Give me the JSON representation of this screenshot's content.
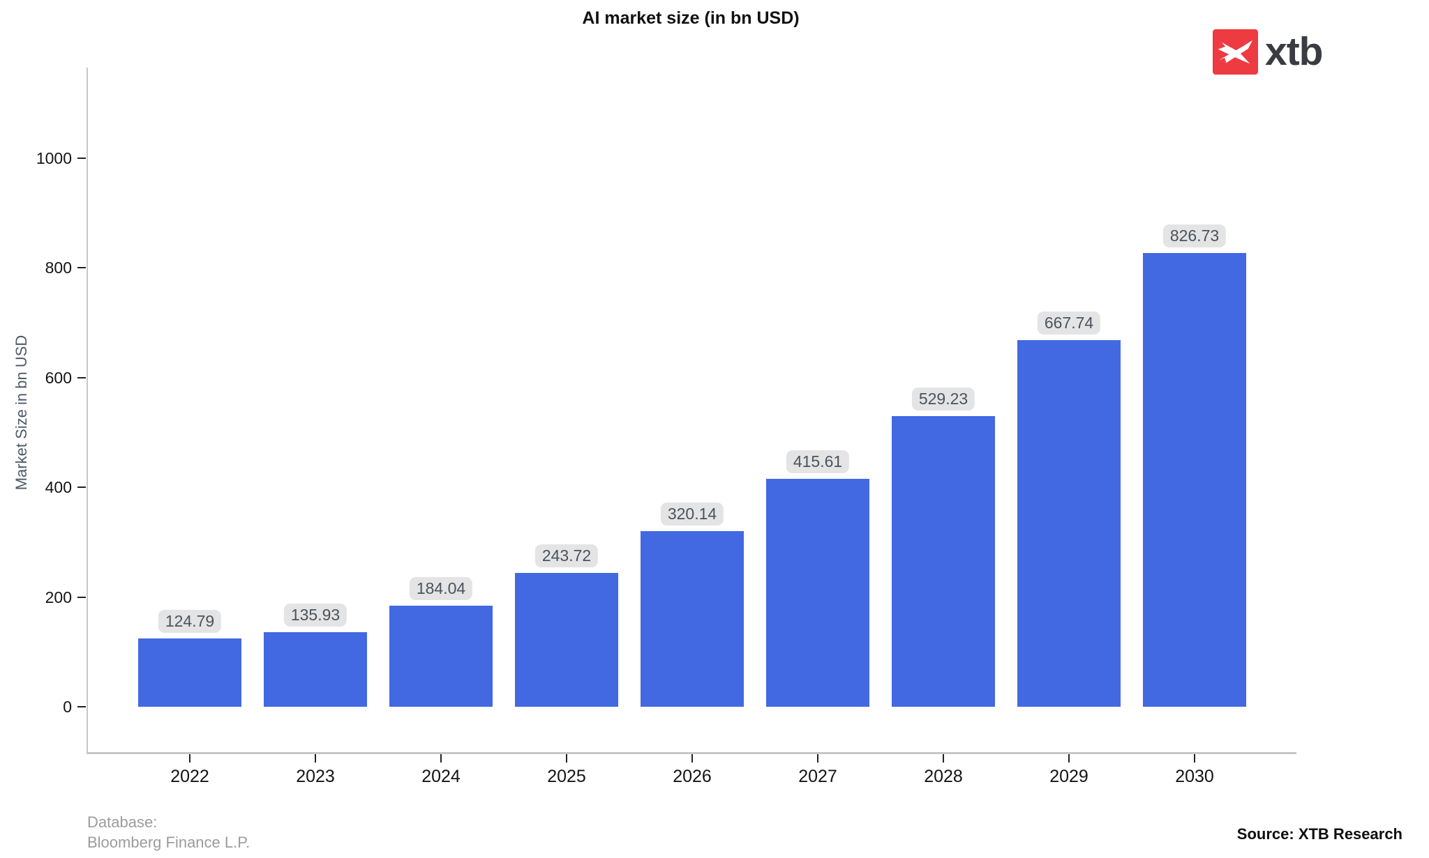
{
  "title": "AI market size (in bn USD)",
  "logo": {
    "wordmark": "xtb",
    "icon": "xtb-x-mark",
    "red": "#ee3a41",
    "wordmark_color": "#3a3c41"
  },
  "chart_data": {
    "type": "bar",
    "title": "AI market size (in bn USD)",
    "categories": [
      "2022",
      "2023",
      "2024",
      "2025",
      "2026",
      "2027",
      "2028",
      "2029",
      "2030"
    ],
    "values": [
      124.79,
      135.93,
      184.04,
      243.72,
      320.14,
      415.61,
      529.23,
      667.74,
      826.73
    ],
    "xlabel": "",
    "ylabel": "Market Size in bn USD",
    "yticks": [
      0,
      200,
      400,
      600,
      800,
      1000
    ],
    "ylim": [
      0,
      1165
    ],
    "grid": false,
    "legend": false,
    "bar_color": "#4269e2",
    "value_label_bg": "#e4e4e4",
    "value_label_color": "#49535f"
  },
  "footer": {
    "database_label": "Database:",
    "database_value": "Bloomberg Finance L.P.",
    "source": "Source: XTB Research"
  }
}
